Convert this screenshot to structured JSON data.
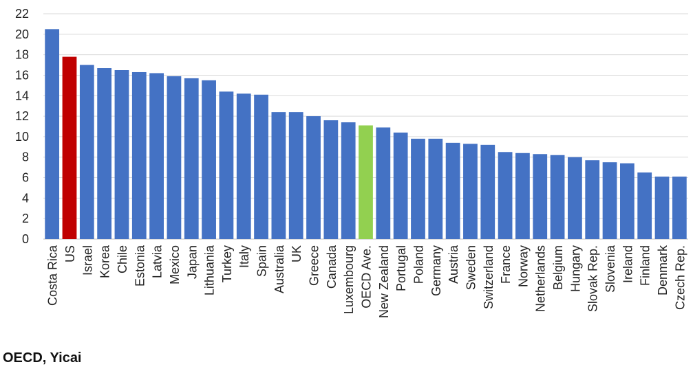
{
  "chart_data": {
    "type": "bar",
    "categories": [
      "Costa Rica",
      "US",
      "Israel",
      "Korea",
      "Chile",
      "Estonia",
      "Latvia",
      "Mexico",
      "Japan",
      "Lithuania",
      "Turkey",
      "Italy",
      "Spain",
      "Australia",
      "UK",
      "Greece",
      "Canada",
      "Luxembourg",
      "OECD Ave.",
      "New Zealand",
      "Portugal",
      "Poland",
      "Germany",
      "Austria",
      "Sweden",
      "Switzerland",
      "France",
      "Norway",
      "Netherlands",
      "Belgium",
      "Hungary",
      "Slovak Rep.",
      "Slovenia",
      "Ireland",
      "Finland",
      "Denmark",
      "Czech Rep."
    ],
    "values": [
      20.5,
      17.8,
      17.0,
      16.7,
      16.5,
      16.3,
      16.2,
      15.9,
      15.7,
      15.5,
      14.4,
      14.2,
      14.1,
      12.4,
      12.4,
      12.0,
      11.6,
      11.4,
      11.1,
      10.9,
      10.4,
      9.8,
      9.8,
      9.4,
      9.3,
      9.2,
      8.5,
      8.4,
      8.3,
      8.2,
      8.0,
      7.7,
      7.5,
      7.4,
      6.5,
      6.1,
      6.1
    ],
    "colors": {
      "default": "#4472C4",
      "US": "#C00000",
      "OECD Ave.": "#92D050",
      "grid": "#D9D9D9"
    },
    "ylim": [
      0,
      22
    ],
    "y_ticks": [
      0,
      2,
      4,
      6,
      8,
      10,
      12,
      14,
      16,
      18,
      20,
      22
    ],
    "grid": true,
    "title": "",
    "xlabel": "",
    "ylabel": ""
  },
  "source": "OECD, Yicai"
}
